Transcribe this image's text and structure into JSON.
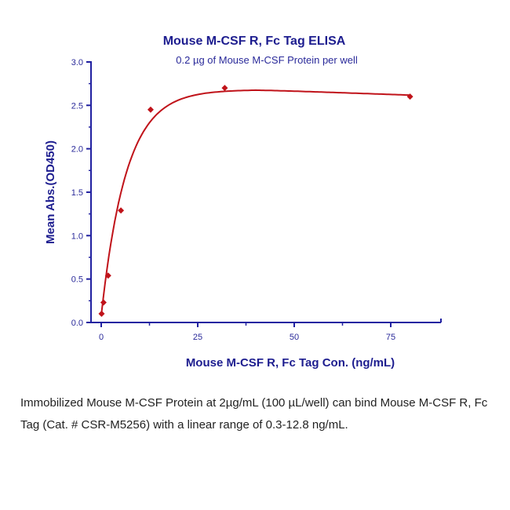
{
  "chart_data": {
    "type": "scatter",
    "title": "Mouse M-CSF R, Fc Tag ELISA",
    "subtitle": "0.2 µg of Mouse M-CSF Protein per well",
    "xlabel": "Mouse M-CSF R, Fc Tag Con. (ng/mL)",
    "ylabel": "Mean Abs.(OD450)",
    "xlim": [
      -2.5,
      87
    ],
    "ylim": [
      0,
      3.0
    ],
    "xticks": [
      "0",
      "25",
      "50",
      "75"
    ],
    "yticks": [
      "0.0",
      "0.5",
      "1.0",
      "1.5",
      "2.0",
      "2.5",
      "3.0"
    ],
    "grid": false,
    "legend": null,
    "series": [
      {
        "name": "Mouse M-CSF R, Fc Tag",
        "marker": "diamond",
        "color": "#c0131a",
        "x": [
          0.1,
          0.6,
          1.8,
          5.1,
          12.8,
          32,
          80
        ],
        "y": [
          0.1,
          0.23,
          0.54,
          1.29,
          2.45,
          2.7,
          2.6
        ],
        "fit": "4PL curve"
      }
    ]
  },
  "caption": "Immobilized Mouse M-CSF Protein at 2µg/mL (100 µL/well) can bind Mouse M-CSF R, Fc Tag (Cat. # CSR-M5256) with a linear range of 0.3-12.8 ng/mL.",
  "colors": {
    "axis": "#2020a0",
    "text": "#1d1d8f",
    "series": "#c0131a"
  }
}
